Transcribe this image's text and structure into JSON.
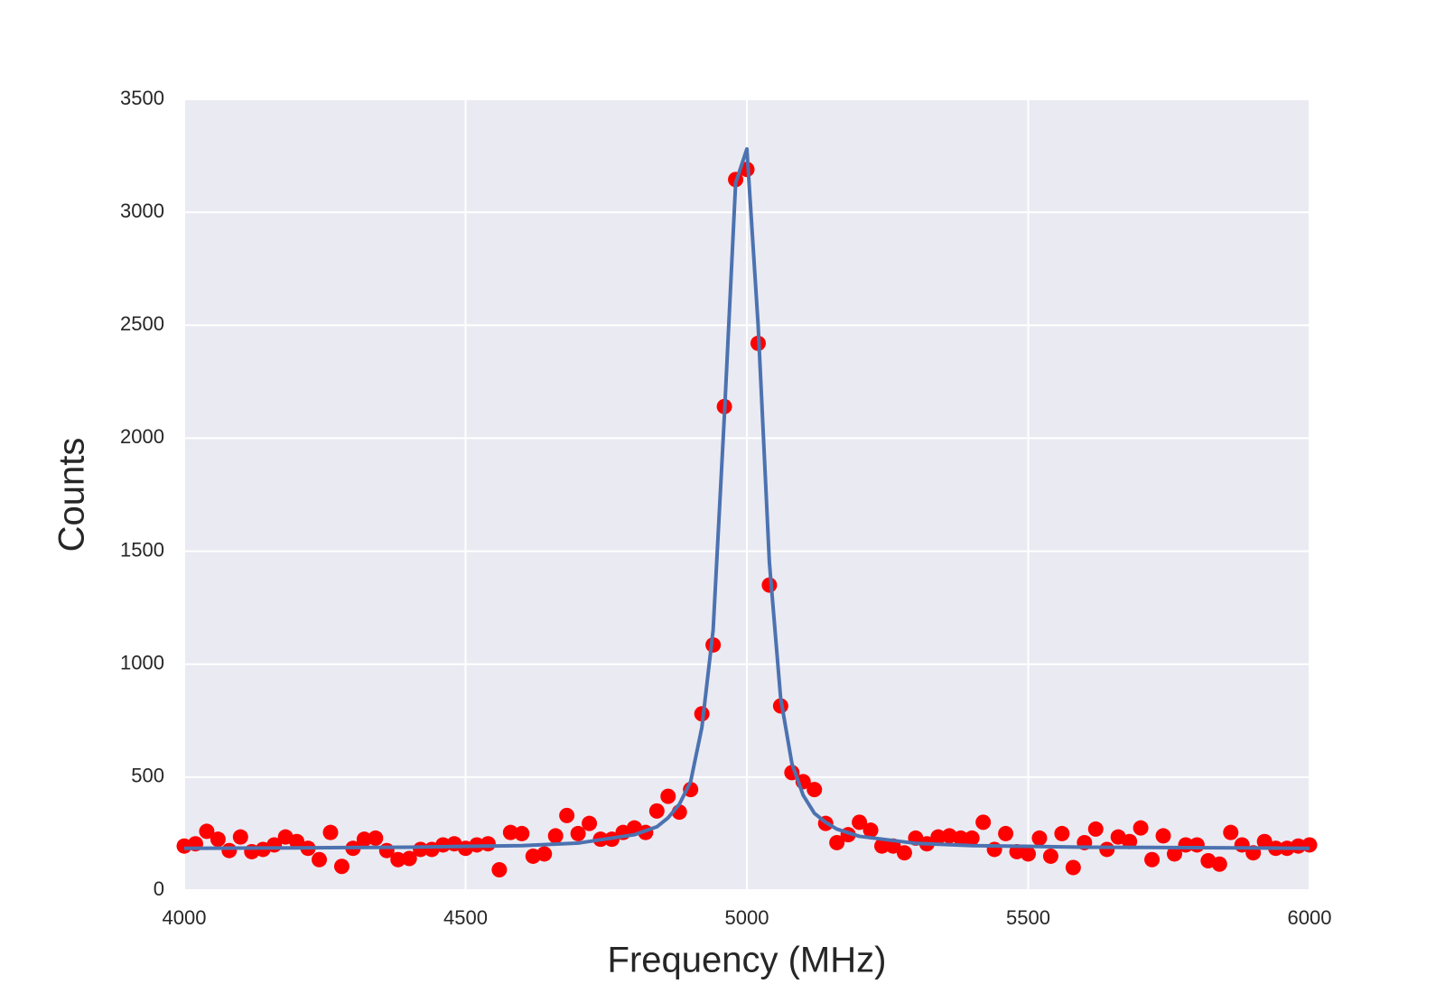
{
  "chart_data": {
    "type": "scatter",
    "xlabel": "Frequency (MHz)",
    "ylabel": "Counts",
    "xlim": [
      4000,
      6000
    ],
    "ylim": [
      0,
      3500
    ],
    "xticks": [
      4000,
      4500,
      5000,
      5500,
      6000
    ],
    "yticks": [
      0,
      500,
      1000,
      1500,
      2000,
      2500,
      3000,
      3500
    ],
    "grid": true,
    "series": [
      {
        "type": "scatter",
        "color": "#ff0000",
        "x": [
          4000,
          4020,
          4040,
          4060,
          4080,
          4100,
          4120,
          4140,
          4160,
          4180,
          4200,
          4220,
          4240,
          4260,
          4280,
          4300,
          4320,
          4340,
          4360,
          4380,
          4400,
          4420,
          4440,
          4460,
          4480,
          4500,
          4520,
          4540,
          4560,
          4580,
          4600,
          4620,
          4640,
          4660,
          4680,
          4700,
          4720,
          4740,
          4760,
          4780,
          4800,
          4820,
          4840,
          4860,
          4880,
          4900,
          4920,
          4940,
          4960,
          4980,
          5000,
          5020,
          5040,
          5060,
          5080,
          5100,
          5120,
          5140,
          5160,
          5180,
          5200,
          5220,
          5240,
          5260,
          5280,
          5300,
          5320,
          5340,
          5360,
          5380,
          5400,
          5420,
          5440,
          5460,
          5480,
          5500,
          5520,
          5540,
          5560,
          5580,
          5600,
          5620,
          5640,
          5660,
          5680,
          5700,
          5720,
          5740,
          5760,
          5780,
          5800,
          5820,
          5840,
          5860,
          5880,
          5900,
          5920,
          5940,
          5960,
          5980,
          6000
        ],
        "values": [
          195,
          205,
          260,
          225,
          175,
          235,
          170,
          180,
          200,
          235,
          215,
          185,
          135,
          255,
          105,
          185,
          225,
          230,
          175,
          135,
          140,
          180,
          180,
          200,
          205,
          185,
          200,
          205,
          90,
          255,
          250,
          150,
          160,
          240,
          330,
          250,
          295,
          225,
          225,
          255,
          275,
          255,
          350,
          415,
          345,
          445,
          780,
          1085,
          2140,
          3145,
          3190,
          2420,
          1350,
          815,
          520,
          480,
          445,
          295,
          210,
          245,
          300,
          265,
          195,
          195,
          165,
          230,
          205,
          235,
          240,
          230,
          230,
          300,
          180,
          250,
          170,
          160,
          230,
          150,
          250,
          100,
          210,
          270,
          180,
          235,
          215,
          275,
          135,
          240,
          160,
          200,
          200,
          130,
          115,
          255,
          200,
          165,
          215,
          185,
          185,
          195,
          200
        ]
      },
      {
        "type": "line",
        "color": "#4c72b0",
        "x": [
          4000,
          4200,
          4400,
          4600,
          4700,
          4800,
          4840,
          4860,
          4880,
          4900,
          4920,
          4940,
          4960,
          4980,
          5000,
          5020,
          5040,
          5060,
          5080,
          5100,
          5120,
          5140,
          5160,
          5200,
          5300,
          5400,
          5600,
          6000
        ],
        "values": [
          185,
          187,
          190,
          197,
          208,
          245,
          280,
          320,
          380,
          480,
          720,
          1150,
          2100,
          3130,
          3280,
          2500,
          1450,
          850,
          560,
          420,
          340,
          300,
          270,
          238,
          207,
          197,
          190,
          185
        ]
      }
    ]
  }
}
